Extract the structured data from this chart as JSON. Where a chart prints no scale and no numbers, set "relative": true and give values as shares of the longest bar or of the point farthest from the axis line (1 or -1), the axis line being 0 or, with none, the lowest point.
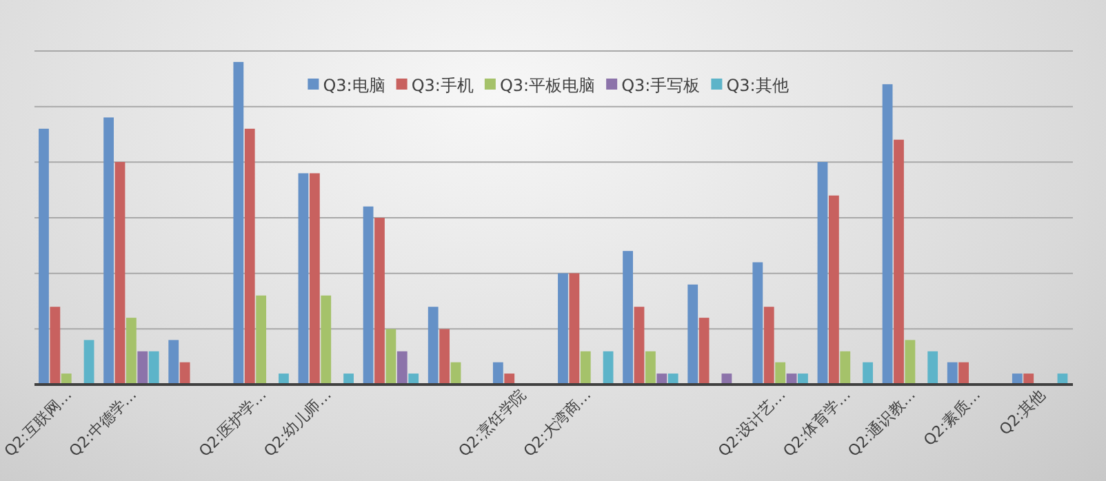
{
  "chart_data": {
    "type": "bar",
    "relative": true,
    "grid": "y",
    "legend": "top",
    "categories": [
      "Q2:互联网…",
      "Q2:中德学…",
      null,
      "Q2:医护学…",
      "Q2:幼儿师…",
      null,
      null,
      "Q2:烹饪学院",
      "Q2:大湾商…",
      null,
      null,
      "Q2:设计艺…",
      "Q2:体育学…",
      "Q2:通识教…",
      "Q2:素质…",
      "Q2:其他"
    ],
    "series": [
      {
        "name": "Q3:电脑",
        "color": "#6591c7",
        "values": [
          0.793,
          0.828,
          0.138,
          1,
          0.655,
          0.552,
          0.241,
          0.069,
          0.345,
          0.414,
          0.31,
          0.379,
          0.69,
          0.931,
          0.069,
          0.034
        ]
      },
      {
        "name": "Q3:手机",
        "color": "#c8615f",
        "values": [
          0.241,
          0.69,
          0.069,
          0.793,
          0.655,
          0.517,
          0.172,
          0.034,
          0.345,
          0.241,
          0.207,
          0.241,
          0.586,
          0.759,
          0.069,
          0.034
        ]
      },
      {
        "name": "Q3:平板电脑",
        "color": "#a5c26a",
        "values": [
          0.034,
          0.207,
          0,
          0.276,
          0.276,
          0.172,
          0.069,
          0,
          0.103,
          0.103,
          0,
          0.069,
          0.103,
          0.138,
          0,
          0
        ]
      },
      {
        "name": "Q3:手写板",
        "color": "#8c73aa",
        "values": [
          0,
          0.103,
          0,
          0,
          0,
          0.103,
          0,
          0,
          0,
          0.034,
          0.034,
          0.034,
          0,
          0,
          0,
          0
        ]
      },
      {
        "name": "Q3:其他",
        "color": "#5db4c9",
        "values": [
          0.138,
          0.103,
          0,
          0.034,
          0.034,
          0.034,
          0,
          0,
          0.103,
          0.034,
          0,
          0.034,
          0.069,
          0.103,
          0,
          0.034
        ]
      }
    ]
  }
}
